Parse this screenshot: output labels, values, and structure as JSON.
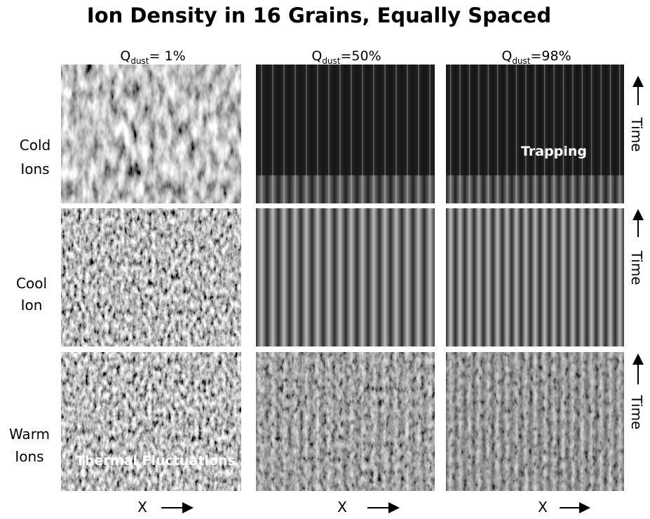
{
  "title": "Ion Density in 16 Grains, Equally Spaced",
  "columns": [
    {
      "symbol": "Q",
      "subscript": "dust",
      "value": "= 1%"
    },
    {
      "symbol": "Q",
      "subscript": "dust",
      "value": "=50%"
    },
    {
      "symbol": "Q",
      "subscript": "dust",
      "value": "=98%"
    }
  ],
  "rows": [
    {
      "label": [
        "Cold",
        "Ions"
      ],
      "time_label": "Time"
    },
    {
      "label": [
        "Cool",
        "Ion"
      ],
      "time_label": "Time"
    },
    {
      "label": [
        "Warm",
        "Ions"
      ],
      "time_label": "Time"
    }
  ],
  "x_labels": [
    "X",
    "X",
    "X"
  ],
  "annotations": [
    "Trapping",
    "Thermal Fluctuations"
  ]
}
